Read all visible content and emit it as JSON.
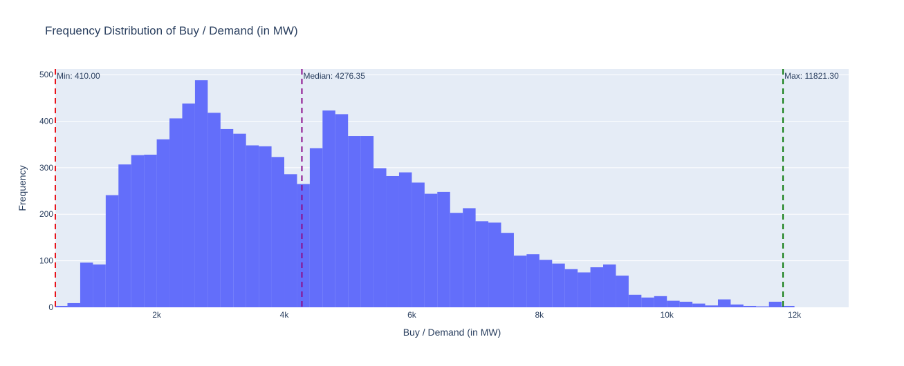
{
  "chart_data": {
    "type": "bar",
    "subtype": "histogram",
    "title": "Frequency Distribution of Buy / Demand (in MW)",
    "xlabel": "Buy / Demand (in MW)",
    "ylabel": "Frequency",
    "xlim": [
      410,
      12850
    ],
    "ylim": [
      0,
      512
    ],
    "bin_width": 200,
    "bin_start": 400,
    "x_ticks": [
      {
        "value": 2000,
        "label": "2k"
      },
      {
        "value": 4000,
        "label": "4k"
      },
      {
        "value": 6000,
        "label": "6k"
      },
      {
        "value": 8000,
        "label": "8k"
      },
      {
        "value": 10000,
        "label": "10k"
      },
      {
        "value": 12000,
        "label": "12k"
      }
    ],
    "y_ticks": [
      {
        "value": 0,
        "label": "0"
      },
      {
        "value": 100,
        "label": "100"
      },
      {
        "value": 200,
        "label": "200"
      },
      {
        "value": 300,
        "label": "300"
      },
      {
        "value": 400,
        "label": "400"
      },
      {
        "value": 500,
        "label": "500"
      }
    ],
    "values": [
      3,
      9,
      96,
      92,
      241,
      307,
      327,
      328,
      361,
      406,
      438,
      488,
      418,
      383,
      373,
      348,
      346,
      323,
      286,
      265,
      342,
      423,
      415,
      368,
      368,
      299,
      282,
      290,
      268,
      244,
      248,
      203,
      213,
      185,
      182,
      160,
      111,
      114,
      102,
      94,
      82,
      75,
      86,
      92,
      68,
      27,
      21,
      24,
      14,
      12,
      8,
      4,
      17,
      6,
      3,
      2,
      12,
      3
    ],
    "reference_lines": [
      {
        "value": 410.0,
        "label": "Min: 410.00",
        "color": "#e8141b"
      },
      {
        "value": 4276.35,
        "label": "Median: 4276.35",
        "color": "#8b0c8b"
      },
      {
        "value": 11821.3,
        "label": "Max: 11821.30",
        "color": "#0c7a0c"
      }
    ],
    "bar_color": "#636efa",
    "plot_background": "#e5ecf6",
    "grid": true,
    "legend": false
  }
}
